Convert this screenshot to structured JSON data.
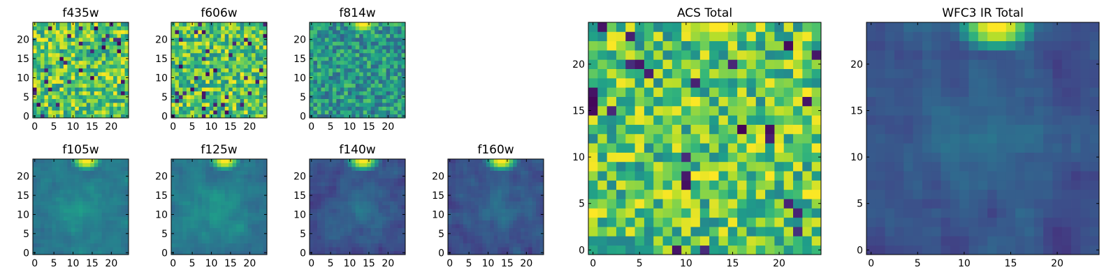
{
  "colormap": "viridis",
  "chart_data": [
    {
      "type": "heatmap",
      "title": "f435w",
      "size": 25,
      "xticks": [
        0,
        5,
        10,
        15,
        20
      ],
      "yticks": [
        0,
        5,
        10,
        15,
        20
      ],
      "pattern": "noise-bright",
      "seed": 11,
      "peak": false
    },
    {
      "type": "heatmap",
      "title": "f606w",
      "size": 25,
      "xticks": [
        0,
        5,
        10,
        15,
        20
      ],
      "yticks": [
        0,
        5,
        10,
        15,
        20
      ],
      "pattern": "noise-bright",
      "seed": 23,
      "peak": false
    },
    {
      "type": "heatmap",
      "title": "f814w",
      "size": 25,
      "xticks": [
        0,
        5,
        10,
        15,
        20
      ],
      "yticks": [
        0,
        5,
        10,
        15,
        20
      ],
      "pattern": "noise-mid",
      "seed": 37,
      "peak": true
    },
    {
      "type": "heatmap",
      "title": "f105w",
      "size": 25,
      "xticks": [
        0,
        5,
        10,
        15,
        20
      ],
      "yticks": [
        0,
        5,
        10,
        15,
        20
      ],
      "pattern": "smooth-mid",
      "seed": 41,
      "peak": true
    },
    {
      "type": "heatmap",
      "title": "f125w",
      "size": 25,
      "xticks": [
        0,
        5,
        10,
        15,
        20
      ],
      "yticks": [
        0,
        5,
        10,
        15,
        20
      ],
      "pattern": "smooth-mid",
      "seed": 53,
      "peak": true
    },
    {
      "type": "heatmap",
      "title": "f140w",
      "size": 25,
      "xticks": [
        0,
        5,
        10,
        15,
        20
      ],
      "yticks": [
        0,
        5,
        10,
        15,
        20
      ],
      "pattern": "smooth-dark",
      "seed": 67,
      "peak": true
    },
    {
      "type": "heatmap",
      "title": "f160w",
      "size": 25,
      "xticks": [
        0,
        5,
        10,
        15,
        20
      ],
      "yticks": [
        0,
        5,
        10,
        15,
        20
      ],
      "pattern": "smooth-dark",
      "seed": 79,
      "peak": true
    },
    {
      "type": "heatmap",
      "title": "ACS Total",
      "size": 25,
      "xticks": [
        0,
        5,
        10,
        15,
        20
      ],
      "yticks": [
        0,
        5,
        10,
        15,
        20
      ],
      "pattern": "noise-bright",
      "seed": 97,
      "peak": true
    },
    {
      "type": "heatmap",
      "title": "WFC3 IR Total",
      "size": 25,
      "xticks": [
        0,
        5,
        10,
        15,
        20
      ],
      "yticks": [
        0,
        5,
        10,
        15,
        20
      ],
      "pattern": "smooth-dark",
      "seed": 131,
      "peak": true
    }
  ]
}
